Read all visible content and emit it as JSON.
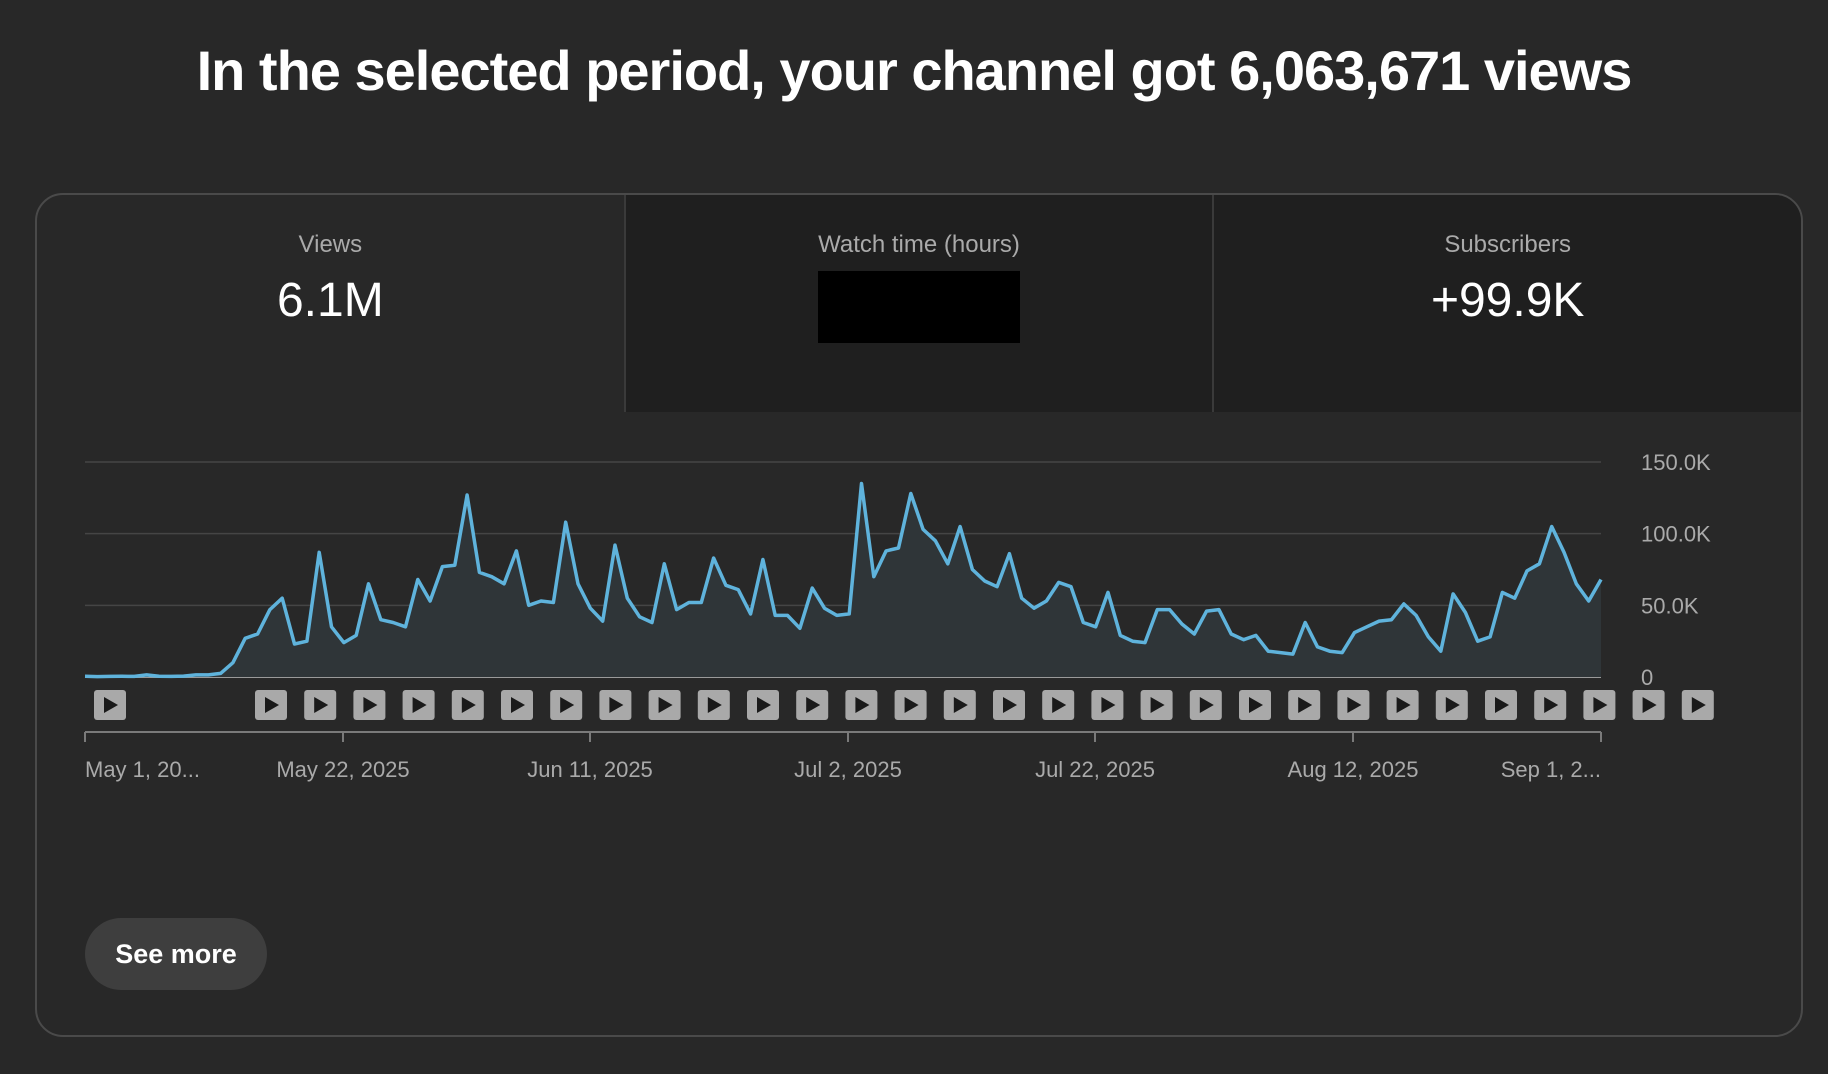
{
  "headline": "In the selected period, your channel got 6,063,671 views",
  "tabs": [
    {
      "label": "Views",
      "value": "6.1M",
      "selected": true
    },
    {
      "label": "Watch time (hours)",
      "value": "",
      "redacted": true
    },
    {
      "label": "Subscribers",
      "value": "+99.9K"
    }
  ],
  "see_more_label": "See more",
  "icons": {
    "video_marker": "play-icon"
  },
  "colors": {
    "line": "#5fb3dc",
    "area": "#2f3538",
    "background": "#282828",
    "inactive_tab": "#1f1f1f"
  },
  "chart_data": {
    "type": "area",
    "x_tick_labels": [
      "May 1, 20...",
      "May 22, 2025",
      "Jun 11, 2025",
      "Jul 2, 2025",
      "Jul 22, 2025",
      "Aug 12, 2025",
      "Sep 1, 2..."
    ],
    "y_tick_labels": [
      "0",
      "50.0K",
      "100.0K",
      "150.0K"
    ],
    "ylim": [
      0,
      150000
    ],
    "grid": true,
    "series": [
      {
        "values": [
          500,
          300,
          400,
          500,
          400,
          1500,
          500,
          400,
          600,
          1500,
          1500,
          2500,
          10000,
          27000,
          30000,
          47000,
          55000,
          23000,
          25000,
          87000,
          35000,
          24000,
          29000,
          65000,
          40000,
          38000,
          35000,
          68000,
          53000,
          77000,
          78000,
          127000,
          73000,
          70000,
          65000,
          88000,
          50000,
          53000,
          52000,
          108000,
          65000,
          48000,
          39000,
          92000,
          55000,
          42000,
          38000,
          79000,
          47000,
          52000,
          52000,
          83000,
          64000,
          61000,
          44000,
          82000,
          43000,
          43000,
          34000,
          62000,
          48000,
          43000,
          44000,
          135000,
          70000,
          88000,
          90000,
          128000,
          103000,
          95000,
          79000,
          105000,
          75000,
          67000,
          63000,
          86000,
          55000,
          48000,
          53000,
          66000,
          63000,
          38000,
          35000,
          59000,
          29000,
          25000,
          24000,
          47000,
          47000,
          37000,
          30000,
          46000,
          47000,
          30000,
          26000,
          29000,
          18000,
          17000,
          16000,
          38000,
          21000,
          18000,
          17000,
          31000,
          35000,
          39000,
          40000,
          51000,
          43000,
          28000,
          18000,
          58000,
          45000,
          25000,
          28000,
          59000,
          55000,
          74000,
          79000,
          105000,
          87000,
          65000,
          53000,
          68000
        ]
      }
    ],
    "video_marker_count": 31
  }
}
